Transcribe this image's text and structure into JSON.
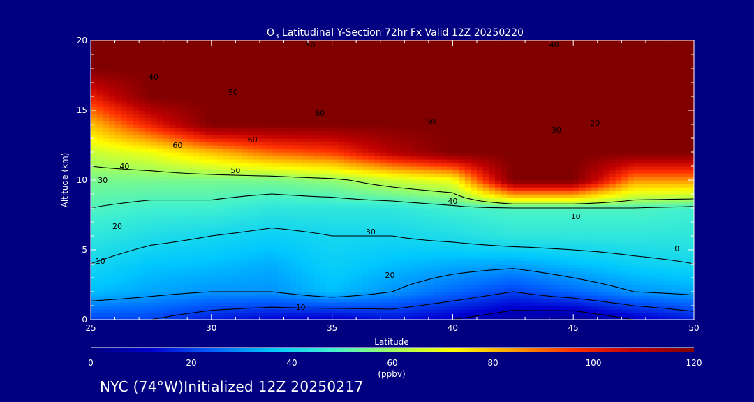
{
  "chart_data": {
    "type": "heatmap",
    "title": "O3 Latitudinal Y-Section 72hr  Fx Valid 12Z 20250220",
    "title_parts": {
      "species": "O",
      "subscript": "3",
      "rest": " Latitudinal Y-Section 72hr  Fx Valid 12Z 20250220"
    },
    "xlabel": "Latitude",
    "ylabel": "Altitude (km)",
    "xlim": [
      25,
      50
    ],
    "ylim": [
      0,
      20
    ],
    "x_ticks": [
      25,
      30,
      35,
      40,
      45,
      50
    ],
    "y_ticks": [
      0,
      5,
      10,
      15,
      20
    ],
    "colorbar": {
      "label": "(ppbv)",
      "range": [
        0,
        120
      ],
      "ticks": [
        0,
        20,
        40,
        60,
        80,
        100,
        120
      ],
      "colors": [
        "#000080",
        "#0000d0",
        "#0060ff",
        "#00c8ff",
        "#40f0d0",
        "#a0ff60",
        "#ffff00",
        "#ffa000",
        "#ff3000",
        "#c00000",
        "#800000"
      ]
    },
    "lat": [
      25,
      27.5,
      30,
      32.5,
      35,
      37.5,
      40,
      42.5,
      45,
      47.5,
      50
    ],
    "alt": [
      0,
      2,
      4,
      6,
      8,
      10,
      12,
      14,
      16,
      18,
      20
    ],
    "values": [
      [
        20,
        20,
        15,
        12,
        10,
        14,
        10,
        5,
        3,
        10,
        15
      ],
      [
        35,
        32,
        30,
        30,
        35,
        30,
        25,
        20,
        25,
        30,
        32
      ],
      [
        40,
        36,
        35,
        33,
        38,
        35,
        33,
        32,
        35,
        38,
        40
      ],
      [
        45,
        42,
        40,
        38,
        40,
        40,
        42,
        45,
        45,
        45,
        45
      ],
      [
        50,
        48,
        48,
        45,
        45,
        45,
        48,
        50,
        50,
        50,
        48
      ],
      [
        55,
        55,
        55,
        55,
        58,
        65,
        70,
        120,
        120,
        85,
        85
      ],
      [
        65,
        70,
        80,
        90,
        95,
        110,
        120,
        120,
        120,
        120,
        120
      ],
      [
        80,
        100,
        120,
        120,
        120,
        120,
        120,
        120,
        120,
        120,
        120
      ],
      [
        100,
        120,
        120,
        120,
        120,
        120,
        120,
        120,
        120,
        120,
        120
      ],
      [
        120,
        120,
        120,
        120,
        120,
        120,
        120,
        120,
        120,
        120,
        120
      ],
      [
        120,
        120,
        120,
        120,
        120,
        120,
        120,
        120,
        120,
        120,
        120
      ]
    ],
    "contour_labels": [
      {
        "text": "50",
        "lat": 34.1,
        "alt": 19.7
      },
      {
        "text": "40",
        "lat": 44.2,
        "alt": 19.7
      },
      {
        "text": "40",
        "lat": 27.6,
        "alt": 17.4
      },
      {
        "text": "50",
        "lat": 30.9,
        "alt": 16.3
      },
      {
        "text": "60",
        "lat": 34.5,
        "alt": 14.8
      },
      {
        "text": "50",
        "lat": 39.1,
        "alt": 14.2
      },
      {
        "text": "30",
        "lat": 44.3,
        "alt": 13.6
      },
      {
        "text": "20",
        "lat": 45.9,
        "alt": 14.1
      },
      {
        "text": "60",
        "lat": 28.6,
        "alt": 12.5
      },
      {
        "text": "60",
        "lat": 31.7,
        "alt": 12.9
      },
      {
        "text": "40",
        "lat": 26.4,
        "alt": 11.0
      },
      {
        "text": "50",
        "lat": 31.0,
        "alt": 10.7
      },
      {
        "text": "30",
        "lat": 25.5,
        "alt": 10.0
      },
      {
        "text": "40",
        "lat": 40.0,
        "alt": 8.5
      },
      {
        "text": "10",
        "lat": 45.1,
        "alt": 7.4
      },
      {
        "text": "20",
        "lat": 26.1,
        "alt": 6.7
      },
      {
        "text": "30",
        "lat": 36.6,
        "alt": 6.3
      },
      {
        "text": "0",
        "lat": 49.3,
        "alt": 5.1
      },
      {
        "text": "10",
        "lat": 25.4,
        "alt": 4.2
      },
      {
        "text": "20",
        "lat": 37.4,
        "alt": 3.2
      },
      {
        "text": "10",
        "lat": 33.7,
        "alt": 0.9
      }
    ]
  },
  "footer": "NYC (74°W)Initialized 12Z 20250217"
}
